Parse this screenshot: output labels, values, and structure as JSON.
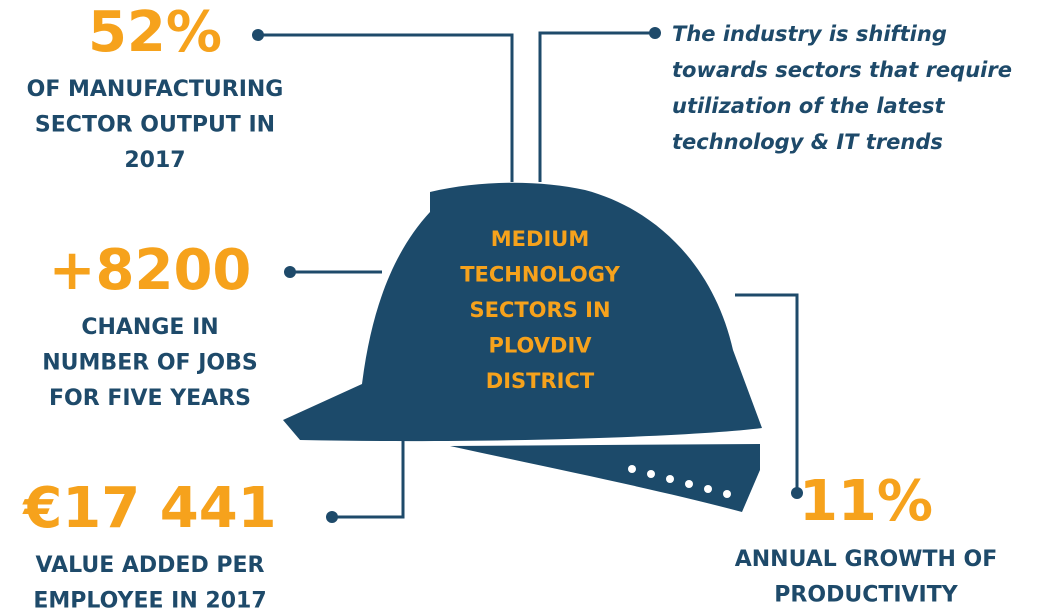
{
  "helmet": {
    "label_lines": [
      "MEDIUM",
      "TECHNOLOGY",
      "SECTORS IN",
      "PLOVDIV",
      "DISTRICT"
    ]
  },
  "note": {
    "lines": [
      "The industry is shifting",
      "towards sectors that require",
      "utilization of the latest",
      "technology & IT trends"
    ]
  },
  "stats": [
    {
      "value": "52%",
      "lines": [
        "OF MANUFACTURING",
        "SECTOR OUTPUT IN",
        "2017"
      ]
    },
    {
      "value": "+8200",
      "lines": [
        "CHANGE IN",
        "NUMBER OF JOBS",
        "FOR FIVE YEARS"
      ]
    },
    {
      "value": "€17 441",
      "lines": [
        "VALUE ADDED PER",
        "EMPLOYEE IN 2017"
      ]
    },
    {
      "value": "11%",
      "lines": [
        "ANNUAL GROWTH OF",
        "PRODUCTIVITY"
      ]
    }
  ]
}
